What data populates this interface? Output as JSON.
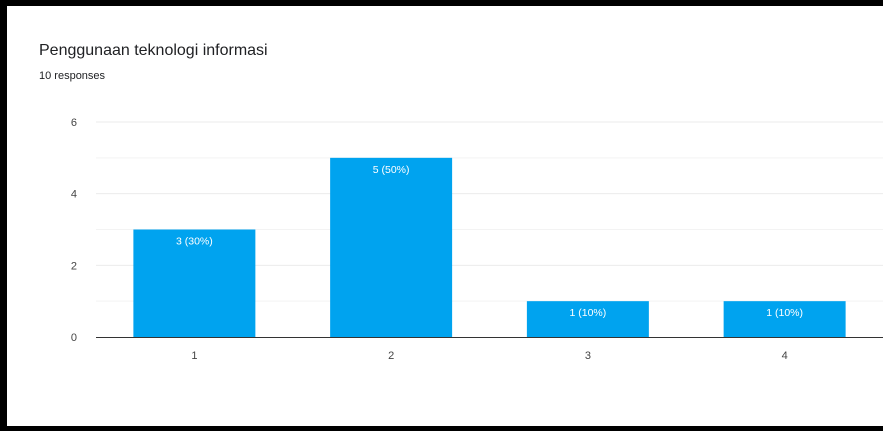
{
  "header": {
    "title": "Penggunaan teknologi informasi",
    "subtitle": "10 responses"
  },
  "colors": {
    "bar": "#00a3ef",
    "grid": "#ebebeb",
    "axis": "#333333",
    "tick_text": "#444444",
    "bar_label": "#ffffff"
  },
  "chart_data": {
    "type": "bar",
    "title": "Penggunaan teknologi informasi",
    "subtitle": "10 responses",
    "categories": [
      "1",
      "2",
      "3",
      "4"
    ],
    "values": [
      3,
      5,
      1,
      1
    ],
    "data_labels": [
      "3 (30%)",
      "5 (50%)",
      "1 (10%)",
      "1 (10%)"
    ],
    "ylim": [
      0,
      6
    ],
    "yticks": [
      0,
      2,
      4,
      6
    ],
    "minor_gridlines": true,
    "grid": true,
    "legend": "none"
  }
}
